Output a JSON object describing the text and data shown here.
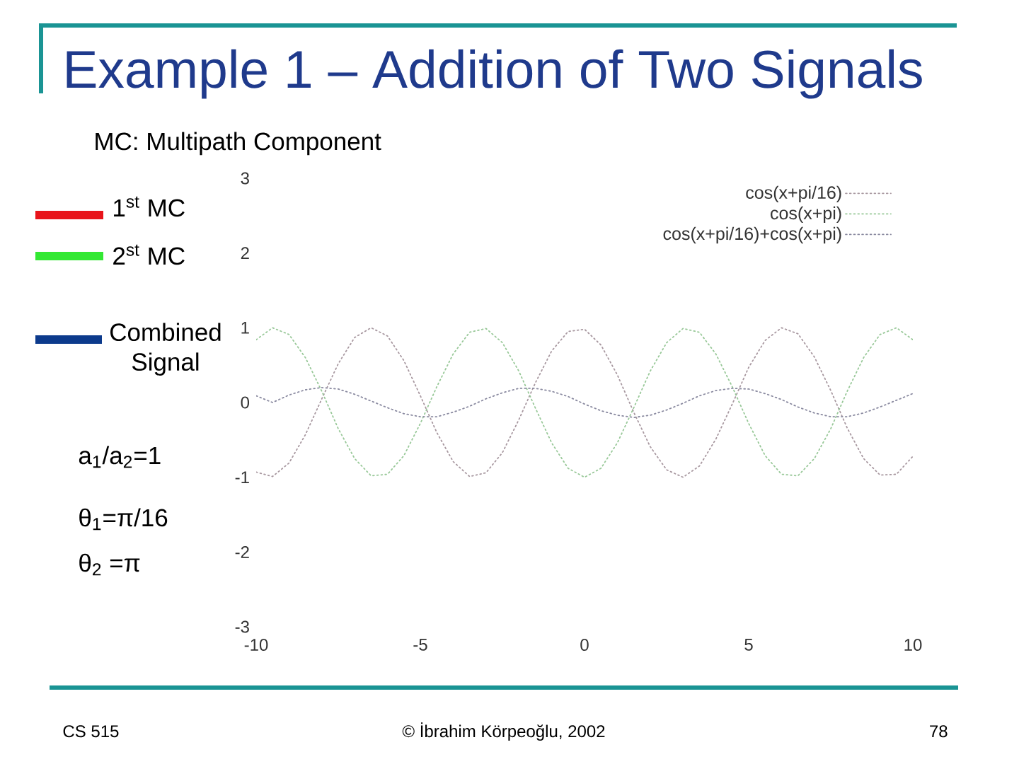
{
  "chart_data": {
    "type": "line",
    "title": "Example 1 – Addition of Two Signals",
    "subtitle": "MC: Multipath Component",
    "x": [
      -10,
      -9.5,
      -9,
      -8.5,
      -8,
      -7.5,
      -7,
      -6.5,
      -6,
      -5.5,
      -5,
      -4.5,
      -4,
      -3.5,
      -3,
      -2.5,
      -2,
      -1.5,
      -1,
      -0.5,
      0,
      0.5,
      1,
      1.5,
      2,
      2.5,
      3,
      3.5,
      4,
      4.5,
      5,
      5.5,
      6,
      6.5,
      7,
      7.5,
      8,
      8.5,
      9,
      9.5,
      10
    ],
    "series": [
      {
        "name": "cos(x+pi/16)",
        "color": "#a898a0",
        "values": [
          -0.93,
          -0.99,
          -0.81,
          -0.43,
          0.05,
          0.52,
          0.87,
          1.0,
          0.89,
          0.56,
          0.09,
          -0.4,
          -0.79,
          -0.99,
          -0.94,
          -0.67,
          -0.23,
          0.26,
          0.69,
          0.95,
          0.98,
          0.77,
          0.37,
          -0.13,
          -0.59,
          -0.9,
          -1.0,
          -0.85,
          -0.49,
          -0.02,
          0.47,
          0.83,
          1.0,
          0.92,
          0.61,
          0.16,
          -0.34,
          -0.75,
          -0.97,
          -0.96,
          -0.72
        ]
      },
      {
        "name": "cos(x+pi)",
        "color": "#98c898",
        "values": [
          0.84,
          1.0,
          0.91,
          0.6,
          0.15,
          -0.35,
          -0.75,
          -0.98,
          -0.96,
          -0.71,
          -0.28,
          0.21,
          0.65,
          0.94,
          0.99,
          0.8,
          0.42,
          -0.07,
          -0.54,
          -0.88,
          -1.0,
          -0.88,
          -0.54,
          -0.07,
          0.42,
          0.8,
          0.99,
          0.94,
          0.65,
          0.21,
          -0.28,
          -0.71,
          -0.96,
          -0.98,
          -0.75,
          -0.35,
          0.15,
          0.6,
          0.91,
          1.0,
          0.84
        ]
      },
      {
        "name": "cos(x+pi/16)+cos(x+pi)",
        "color": "#8a8aa0",
        "values": [
          0.09,
          0.0,
          0.1,
          0.17,
          0.2,
          0.18,
          0.11,
          0.02,
          -0.07,
          -0.15,
          -0.19,
          -0.19,
          -0.13,
          -0.05,
          0.05,
          0.13,
          0.19,
          0.19,
          0.15,
          0.08,
          -0.02,
          -0.11,
          -0.17,
          -0.2,
          -0.17,
          -0.1,
          -0.01,
          0.09,
          0.16,
          0.19,
          0.18,
          0.12,
          0.04,
          -0.06,
          -0.14,
          -0.19,
          -0.19,
          -0.14,
          -0.06,
          0.03,
          0.12
        ]
      }
    ],
    "xlim": [
      -10,
      10
    ],
    "ylim": [
      -3,
      3
    ],
    "xticks": [
      -10,
      -5,
      0,
      5,
      10
    ],
    "yticks": [
      -3,
      -2,
      -1,
      0,
      1,
      2,
      3
    ],
    "legend": "top right",
    "line_style": "dotted",
    "annotations": [
      "1$^{st}$ MC",
      "2$^{st}$ MC",
      "Combined Signal",
      "a$_{1}$/a$_{2}$=1",
      "θ$_{1}$=π/16",
      "θ$_{2}$ =π",
      "CS 515",
      "© İbrahim Körpeoğlu, 2002",
      "78"
    ]
  }
}
